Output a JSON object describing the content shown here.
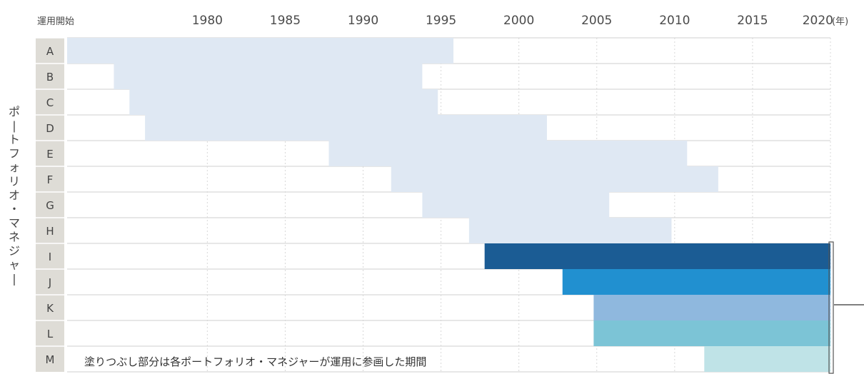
{
  "chart_data": {
    "type": "bar",
    "orientation": "horizontal-range",
    "title": "",
    "xlabel": "運用開始",
    "x_unit": "(年)",
    "ylabel": "ポートフォリオ・マネジャー",
    "xlim": [
      1971,
      2020
    ],
    "x_ticks": [
      1980,
      1985,
      1990,
      1995,
      2000,
      2005,
      2010,
      2015,
      2020
    ],
    "x_tick_labels": [
      "1980",
      "1985",
      "1990",
      "1995",
      "2000",
      "2005",
      "2010",
      "2015",
      "2020"
    ],
    "grid": true,
    "annotation": "塗りつぶし部分は各ポートフォリオ・マネジャーが運用に参画した期間",
    "bars": [
      {
        "label": "A",
        "start": 1971,
        "end": 1995.8,
        "color": "#dfe8f3"
      },
      {
        "label": "B",
        "start": 1974,
        "end": 1993.8,
        "color": "#dfe8f3"
      },
      {
        "label": "C",
        "start": 1975,
        "end": 1994.8,
        "color": "#dfe8f3"
      },
      {
        "label": "D",
        "start": 1976,
        "end": 2001.8,
        "color": "#dfe8f3"
      },
      {
        "label": "E",
        "start": 1987.8,
        "end": 2010.8,
        "color": "#dfe8f3"
      },
      {
        "label": "F",
        "start": 1991.8,
        "end": 2012.8,
        "color": "#dfe8f3"
      },
      {
        "label": "G",
        "start": 1993.8,
        "end": 2005.8,
        "color": "#dfe8f3"
      },
      {
        "label": "H",
        "start": 1996.8,
        "end": 2009.8,
        "color": "#dfe8f3"
      },
      {
        "label": "I",
        "start": 1997.8,
        "end": 2020,
        "color": "#1b5c94"
      },
      {
        "label": "J",
        "start": 2002.8,
        "end": 2020,
        "color": "#2190d0"
      },
      {
        "label": "K",
        "start": 2004.8,
        "end": 2020,
        "color": "#8fb8de"
      },
      {
        "label": "L",
        "start": 2004.8,
        "end": 2020,
        "color": "#7cc4d6"
      },
      {
        "label": "M",
        "start": 2011.9,
        "end": 2020,
        "color": "#bfe3e7"
      }
    ]
  },
  "colors": {
    "row_label_bg": "#dedcd6",
    "grid": "#cfcfcf",
    "accent": "#2190d0"
  }
}
